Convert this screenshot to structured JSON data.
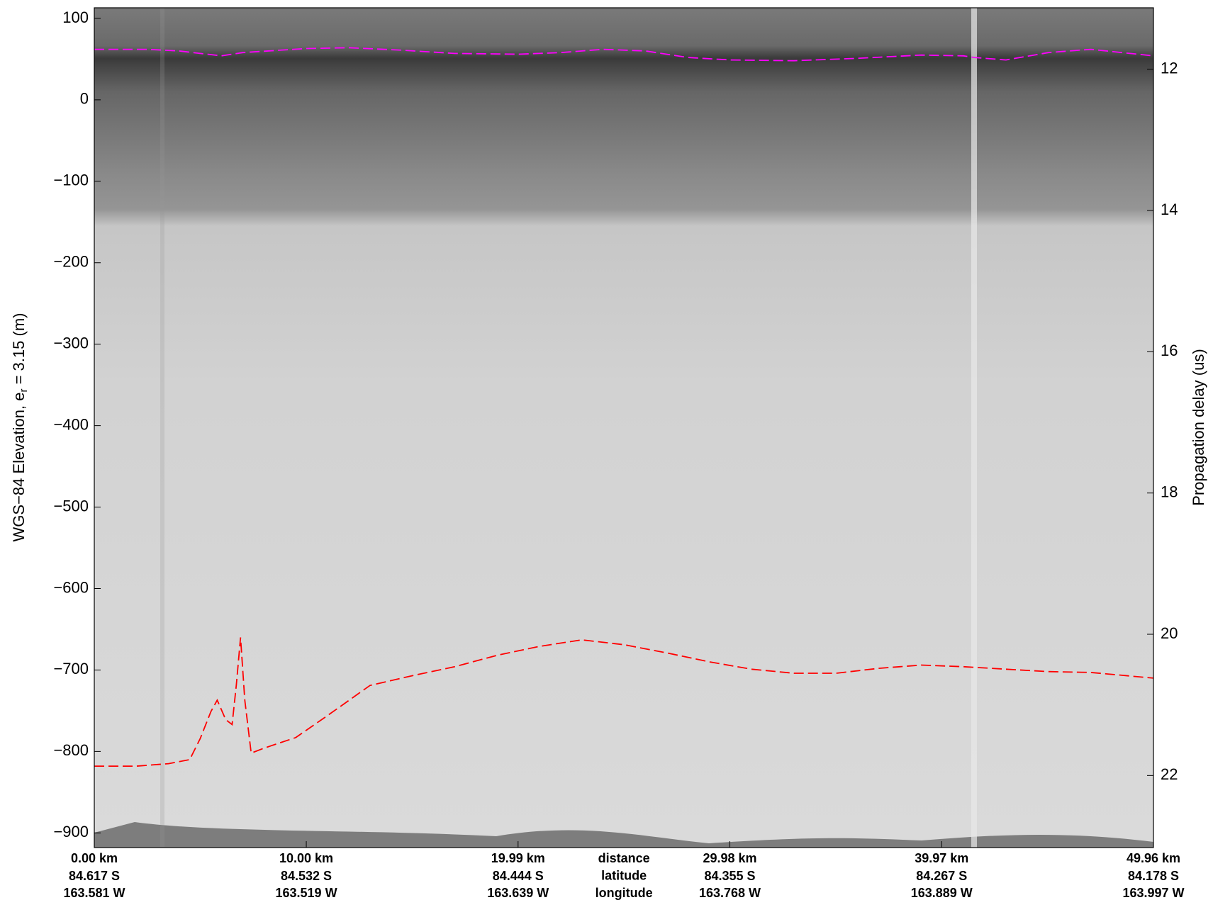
{
  "chart_data": {
    "type": "line",
    "y_label_main": "WGS−84 Elevation, e",
    "y_label_sub": "r",
    "y_label_tail": " = 3.15 (m)",
    "y2_label": "Propagation delay (us)",
    "x_row_labels": [
      "distance",
      "latitude",
      "longitude"
    ],
    "xlim": [
      0,
      49.96
    ],
    "xticks": [
      {
        "value": 0,
        "label": "0.00 km"
      },
      {
        "value": 10,
        "label": "10.00 km"
      },
      {
        "value": 19.99,
        "label": "19.99 km"
      },
      {
        "value": 29.98,
        "label": "29.98 km"
      },
      {
        "value": 39.97,
        "label": "39.97 km"
      },
      {
        "value": 49.96,
        "label": "49.96 km"
      }
    ],
    "xtick_latitudes": [
      "84.617 S",
      "84.532 S",
      "84.444 S",
      "84.355 S",
      "84.267 S",
      "84.178 S"
    ],
    "xtick_longitudes": [
      "163.581 W",
      "163.519 W",
      "163.639 W",
      "163.768 W",
      "163.889 W",
      "163.997 W"
    ],
    "ylim": [
      -918,
      113
    ],
    "yticks": [
      {
        "value": 100,
        "label": "100"
      },
      {
        "value": 0,
        "label": "0"
      },
      {
        "value": -100,
        "label": "−100"
      },
      {
        "value": -200,
        "label": "−200"
      },
      {
        "value": -300,
        "label": "−300"
      },
      {
        "value": -400,
        "label": "−400"
      },
      {
        "value": -500,
        "label": "−500"
      },
      {
        "value": -600,
        "label": "−600"
      },
      {
        "value": -700,
        "label": "−700"
      },
      {
        "value": -800,
        "label": "−800"
      },
      {
        "value": -900,
        "label": "−900"
      }
    ],
    "y2lim": [
      11.13,
      23.02
    ],
    "y2ticks": [
      12,
      14,
      16,
      18,
      20,
      22
    ],
    "series": [
      {
        "name": "surface",
        "color": "#ff00ff",
        "x": [
          0,
          2.5,
          4,
          6,
          7,
          10,
          12,
          14.5,
          17,
          20,
          22,
          24,
          26,
          28,
          30,
          33,
          36,
          39,
          41,
          41.5,
          43,
          45,
          47,
          49.96
        ],
        "values": [
          62,
          62,
          60,
          54,
          58,
          63,
          64,
          61,
          57,
          56,
          58,
          62,
          60,
          52,
          49,
          48,
          51,
          55,
          54,
          52,
          49,
          58,
          62,
          54
        ]
      },
      {
        "name": "bed",
        "color": "#ff0000",
        "x": [
          0,
          2,
          3.5,
          4.5,
          5,
          5.5,
          5.8,
          6.2,
          6.5,
          6.7,
          6.9,
          7.1,
          7.4,
          8,
          9.5,
          11,
          13,
          15,
          17,
          19,
          21,
          23,
          25,
          27,
          29,
          31,
          33,
          35,
          37,
          39,
          41,
          43,
          45,
          47,
          49.96
        ],
        "values": [
          -818,
          -818,
          -815,
          -810,
          -784,
          -751,
          -737,
          -761,
          -767,
          -718,
          -660,
          -737,
          -802,
          -796,
          -783,
          -756,
          -719,
          -707,
          -696,
          -682,
          -671,
          -663,
          -669,
          -679,
          -690,
          -699,
          -704,
          -704,
          -698,
          -694,
          -696,
          -699,
          -702,
          -703,
          -710
        ]
      }
    ]
  }
}
